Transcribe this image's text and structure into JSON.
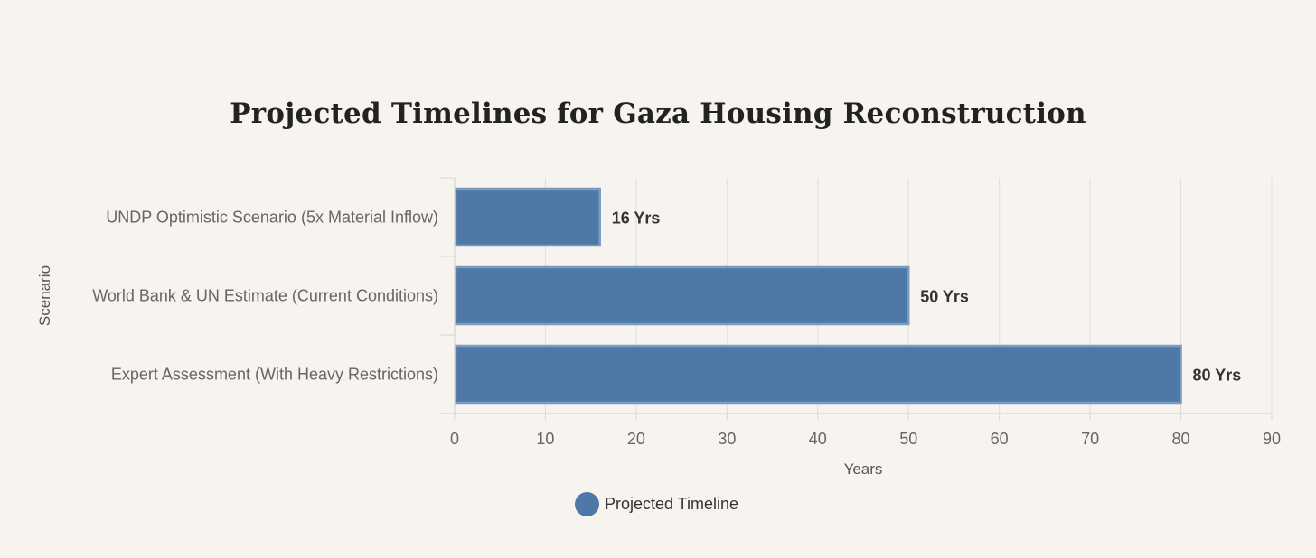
{
  "chart_data": {
    "type": "bar",
    "orientation": "horizontal",
    "title": "Projected Timelines for Gaza Housing Reconstruction",
    "xlabel": "Years",
    "ylabel": "Scenario",
    "categories": [
      "UNDP Optimistic Scenario (5x Material Inflow)",
      "World Bank & UN Estimate (Current Conditions)",
      "Expert Assessment (With Heavy Restrictions)"
    ],
    "series": [
      {
        "name": "Projected Timeline",
        "values": [
          16,
          50,
          80
        ],
        "data_labels": [
          "16 Yrs",
          "50 Yrs",
          "80 Yrs"
        ]
      }
    ],
    "xlim": [
      0,
      90
    ],
    "x_ticks": [
      "0",
      "10",
      "20",
      "30",
      "40",
      "50",
      "60",
      "70",
      "80",
      "90"
    ],
    "grid": true,
    "legend_position": "bottom",
    "bar_color": "#4e79a7",
    "bar_border_color": "#7a9cc4"
  }
}
